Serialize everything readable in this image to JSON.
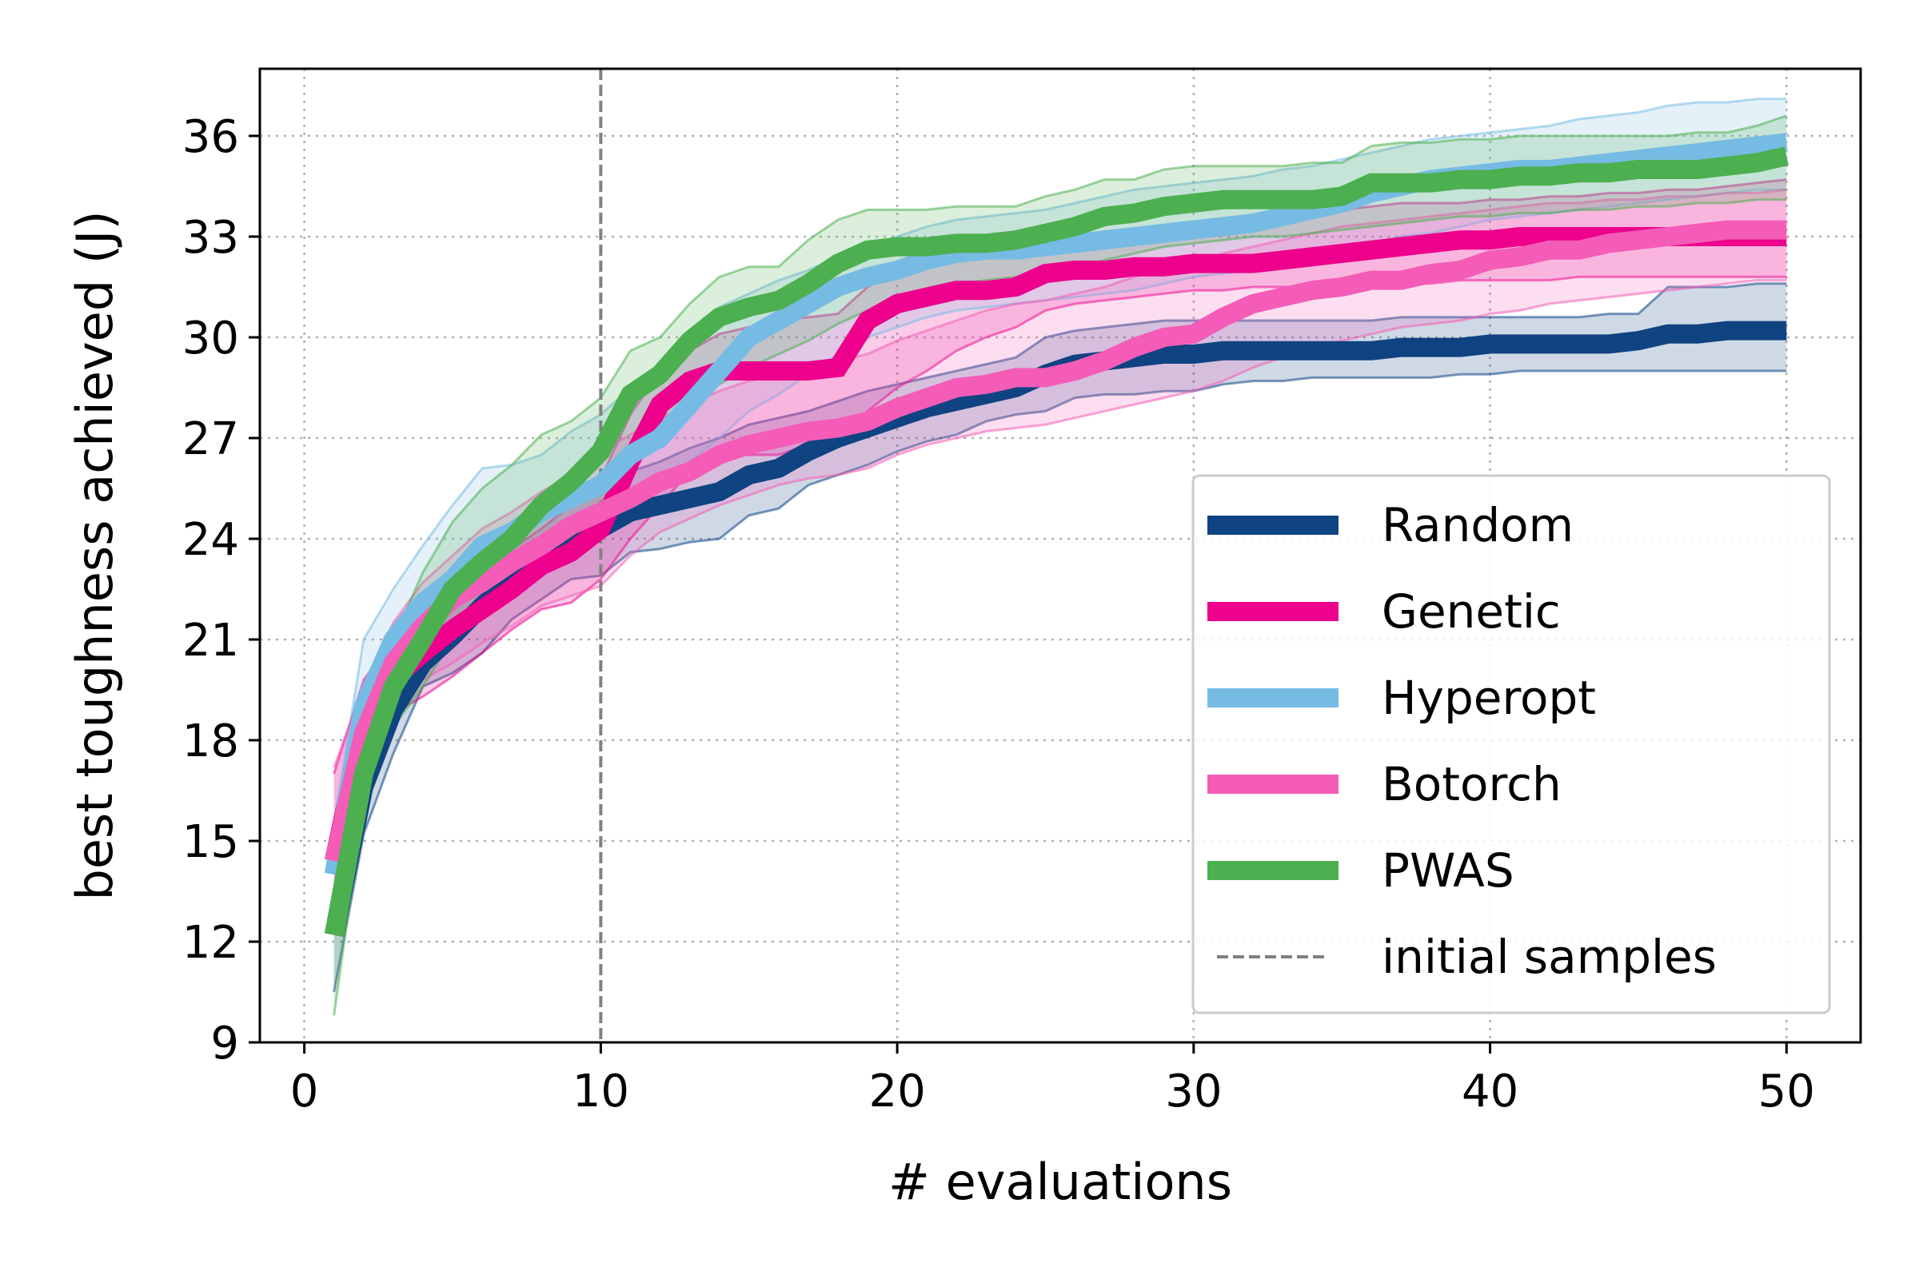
{
  "chart_data": {
    "type": "line",
    "xlabel": "# evaluations",
    "ylabel": "best toughness achieved (J)",
    "xlim": [
      -1.5,
      52.5
    ],
    "ylim": [
      9,
      38
    ],
    "xticks": [
      0,
      10,
      20,
      30,
      40,
      50
    ],
    "yticks": [
      9,
      12,
      15,
      18,
      21,
      24,
      27,
      30,
      33,
      36
    ],
    "grid": true,
    "legend_position": "lower-right",
    "initial_samples_x": 10,
    "initial_samples_label": "initial samples",
    "initial_samples_color": "#808080",
    "x": [
      1,
      2,
      3,
      4,
      5,
      6,
      7,
      8,
      9,
      10,
      11,
      12,
      13,
      14,
      15,
      16,
      17,
      18,
      19,
      20,
      21,
      22,
      23,
      24,
      25,
      26,
      27,
      28,
      29,
      30,
      31,
      32,
      33,
      34,
      35,
      36,
      37,
      38,
      39,
      40,
      41,
      42,
      43,
      44,
      45,
      46,
      47,
      48,
      49,
      50
    ],
    "series": [
      {
        "name": "Random",
        "color": "#0f4381",
        "mean": [
          12.2,
          16.6,
          18.9,
          20.3,
          21.1,
          22.0,
          22.8,
          23.4,
          23.9,
          24.3,
          24.8,
          25.0,
          25.2,
          25.4,
          25.9,
          26.1,
          26.6,
          27.0,
          27.3,
          27.6,
          27.9,
          28.1,
          28.3,
          28.5,
          28.9,
          29.2,
          29.3,
          29.4,
          29.5,
          29.5,
          29.6,
          29.6,
          29.6,
          29.6,
          29.6,
          29.6,
          29.7,
          29.7,
          29.7,
          29.8,
          29.8,
          29.8,
          29.8,
          29.8,
          29.9,
          30.1,
          30.1,
          30.2,
          30.2,
          30.2
        ],
        "lower": [
          10.5,
          15.2,
          17.6,
          19.6,
          20.0,
          20.6,
          21.6,
          22.2,
          22.8,
          22.9,
          23.6,
          23.7,
          23.9,
          24.0,
          24.7,
          24.9,
          25.6,
          25.9,
          26.2,
          26.6,
          26.9,
          27.1,
          27.5,
          27.7,
          27.8,
          28.2,
          28.3,
          28.3,
          28.4,
          28.4,
          28.6,
          28.7,
          28.7,
          28.8,
          28.8,
          28.8,
          28.8,
          28.8,
          28.9,
          28.9,
          29.0,
          29.0,
          29.0,
          29.0,
          29.0,
          29.0,
          29.0,
          29.0,
          29.0,
          29.0
        ],
        "upper": [
          13.0,
          18.2,
          20.6,
          21.6,
          22.5,
          23.2,
          23.9,
          24.6,
          25.0,
          25.4,
          26.0,
          26.3,
          26.7,
          27.0,
          27.4,
          27.6,
          27.8,
          28.1,
          28.4,
          28.6,
          28.8,
          29.0,
          29.2,
          29.4,
          30.0,
          30.2,
          30.3,
          30.4,
          30.5,
          30.5,
          30.5,
          30.5,
          30.5,
          30.5,
          30.5,
          30.5,
          30.6,
          30.6,
          30.6,
          30.6,
          30.6,
          30.6,
          30.6,
          30.7,
          30.7,
          31.5,
          31.5,
          31.5,
          31.6,
          31.6
        ]
      },
      {
        "name": "Genetic",
        "color": "#ec008c",
        "mean": [
          14.4,
          18.5,
          19.8,
          20.6,
          21.3,
          21.9,
          22.5,
          23.2,
          23.6,
          24.3,
          26.3,
          28.0,
          28.7,
          29.0,
          29.0,
          29.0,
          29.0,
          29.1,
          30.5,
          31.0,
          31.2,
          31.4,
          31.4,
          31.5,
          31.9,
          32.0,
          32.0,
          32.1,
          32.1,
          32.2,
          32.2,
          32.2,
          32.3,
          32.4,
          32.5,
          32.6,
          32.7,
          32.8,
          32.9,
          32.9,
          33.0,
          33.0,
          33.0,
          33.0,
          33.0,
          33.0,
          33.0,
          33.0,
          33.0,
          33.0
        ],
        "lower": [
          13.6,
          17.2,
          18.8,
          19.3,
          19.9,
          20.6,
          21.3,
          21.9,
          22.1,
          22.8,
          24.0,
          25.0,
          26.0,
          26.5,
          26.5,
          26.5,
          26.8,
          27.0,
          27.8,
          28.5,
          29.0,
          29.6,
          30.0,
          30.3,
          30.8,
          31.0,
          31.1,
          31.2,
          31.3,
          31.4,
          31.4,
          31.5,
          31.5,
          31.5,
          31.6,
          31.6,
          31.6,
          31.6,
          31.7,
          31.7,
          31.7,
          31.7,
          31.8,
          31.8,
          31.8,
          31.8,
          31.8,
          31.8,
          31.8,
          31.8
        ],
        "upper": [
          17.0,
          19.8,
          21.0,
          21.7,
          22.3,
          23.1,
          23.7,
          24.3,
          25.0,
          25.8,
          27.7,
          29.0,
          29.6,
          30.1,
          30.3,
          30.5,
          30.6,
          30.7,
          31.5,
          32.0,
          32.2,
          32.4,
          32.5,
          32.6,
          32.8,
          32.9,
          33.0,
          33.1,
          33.2,
          33.3,
          33.4,
          33.5,
          33.6,
          33.7,
          33.8,
          33.9,
          34.0,
          34.0,
          34.0,
          34.1,
          34.1,
          34.2,
          34.2,
          34.3,
          34.3,
          34.4,
          34.4,
          34.5,
          34.6,
          34.7
        ]
      },
      {
        "name": "Hyperopt",
        "color": "#76bbe3",
        "mean": [
          14.0,
          19.0,
          21.0,
          22.1,
          22.8,
          23.8,
          24.2,
          24.8,
          25.2,
          25.6,
          26.5,
          27.0,
          28.0,
          29.0,
          30.0,
          30.5,
          31.0,
          31.5,
          31.8,
          32.0,
          32.3,
          32.5,
          32.6,
          32.6,
          32.7,
          32.8,
          32.9,
          33.0,
          33.1,
          33.2,
          33.3,
          33.4,
          33.6,
          33.8,
          34.0,
          34.3,
          34.5,
          34.7,
          34.8,
          34.9,
          35.0,
          35.0,
          35.1,
          35.2,
          35.3,
          35.4,
          35.5,
          35.6,
          35.7,
          35.8
        ],
        "lower": [
          13.4,
          17.5,
          19.5,
          20.6,
          21.0,
          21.8,
          22.5,
          23.0,
          23.6,
          24.1,
          25.0,
          25.5,
          26.3,
          27.0,
          27.8,
          28.3,
          28.9,
          29.5,
          30.0,
          30.3,
          30.6,
          30.8,
          30.9,
          31.0,
          31.1,
          31.2,
          31.3,
          31.4,
          31.6,
          31.8,
          31.9,
          32.0,
          32.2,
          32.4,
          32.6,
          32.8,
          33.0,
          33.1,
          33.3,
          33.5,
          33.6,
          33.7,
          33.8,
          33.9,
          34.0,
          34.1,
          34.2,
          34.3,
          34.4,
          34.4
        ],
        "upper": [
          15.5,
          21.0,
          22.5,
          23.8,
          25.0,
          26.1,
          26.2,
          26.5,
          27.2,
          27.7,
          28.5,
          29.0,
          29.9,
          30.9,
          31.3,
          31.7,
          32.0,
          32.4,
          32.7,
          33.0,
          33.3,
          33.5,
          33.6,
          33.7,
          33.8,
          34.0,
          34.2,
          34.4,
          34.5,
          34.6,
          34.7,
          34.8,
          35.0,
          35.1,
          35.3,
          35.5,
          35.7,
          35.9,
          36.0,
          36.1,
          36.2,
          36.3,
          36.5,
          36.6,
          36.7,
          36.9,
          37.0,
          37.0,
          37.1,
          37.1
        ]
      },
      {
        "name": "Botorch",
        "color": "#f45cb7",
        "mean": [
          14.4,
          18.2,
          20.3,
          21.4,
          22.2,
          22.7,
          23.3,
          23.8,
          24.4,
          24.8,
          25.2,
          25.7,
          26.0,
          26.5,
          26.8,
          27.0,
          27.2,
          27.3,
          27.5,
          27.9,
          28.2,
          28.5,
          28.6,
          28.8,
          28.8,
          29.0,
          29.3,
          29.7,
          30.0,
          30.1,
          30.6,
          31.0,
          31.2,
          31.4,
          31.5,
          31.7,
          31.7,
          31.9,
          32.0,
          32.3,
          32.4,
          32.6,
          32.6,
          32.8,
          32.9,
          33.0,
          33.1,
          33.2,
          33.2,
          33.2
        ],
        "lower": [
          13.5,
          17.3,
          18.7,
          19.8,
          20.3,
          20.9,
          21.4,
          22.0,
          22.3,
          22.6,
          23.5,
          24.2,
          24.6,
          25.0,
          25.3,
          25.6,
          25.8,
          25.9,
          26.1,
          26.5,
          26.8,
          27.0,
          27.2,
          27.3,
          27.4,
          27.6,
          27.8,
          28.0,
          28.2,
          28.4,
          28.7,
          29.1,
          29.4,
          29.7,
          29.9,
          30.1,
          30.3,
          30.4,
          30.5,
          30.7,
          30.8,
          31.0,
          31.1,
          31.2,
          31.3,
          31.4,
          31.5,
          31.6,
          31.7,
          31.7
        ],
        "upper": [
          17.2,
          19.6,
          21.5,
          22.7,
          23.5,
          24.3,
          24.8,
          25.4,
          25.9,
          26.6,
          27.1,
          27.6,
          28.0,
          28.4,
          28.7,
          28.9,
          29.1,
          29.3,
          29.5,
          29.9,
          30.2,
          30.5,
          30.8,
          31.0,
          31.1,
          31.3,
          31.5,
          31.8,
          32.0,
          32.2,
          32.5,
          32.7,
          32.9,
          33.1,
          33.3,
          33.4,
          33.5,
          33.6,
          33.7,
          33.8,
          33.9,
          34.0,
          34.0,
          34.1,
          34.1,
          34.2,
          34.2,
          34.3,
          34.3,
          34.4
        ]
      },
      {
        "name": "PWAS",
        "color": "#4caf50",
        "mean": [
          12.2,
          17.0,
          19.6,
          21.0,
          22.5,
          23.3,
          24.0,
          25.0,
          25.7,
          26.6,
          28.3,
          28.9,
          29.9,
          30.6,
          30.9,
          31.1,
          31.6,
          32.2,
          32.6,
          32.7,
          32.7,
          32.8,
          32.8,
          32.9,
          33.1,
          33.3,
          33.6,
          33.7,
          33.9,
          34.0,
          34.1,
          34.1,
          34.1,
          34.1,
          34.2,
          34.6,
          34.6,
          34.6,
          34.7,
          34.7,
          34.8,
          34.8,
          34.9,
          34.9,
          35.0,
          35.0,
          35.0,
          35.1,
          35.2,
          35.4
        ],
        "lower": [
          9.8,
          16.2,
          18.4,
          19.6,
          21.0,
          21.9,
          22.8,
          23.6,
          24.3,
          24.9,
          26.5,
          27.2,
          28.0,
          28.6,
          29.1,
          29.5,
          29.9,
          30.4,
          30.8,
          31.1,
          31.4,
          31.6,
          31.7,
          31.8,
          31.9,
          32.1,
          32.3,
          32.5,
          32.7,
          32.8,
          32.9,
          33.0,
          33.0,
          33.1,
          33.2,
          33.3,
          33.4,
          33.5,
          33.6,
          33.6,
          33.7,
          33.7,
          33.8,
          33.8,
          33.9,
          33.9,
          34.0,
          34.0,
          34.1,
          34.1
        ],
        "upper": [
          13.0,
          18.0,
          21.0,
          23.0,
          24.5,
          25.5,
          26.2,
          27.1,
          27.5,
          28.2,
          29.6,
          30.0,
          31.0,
          31.8,
          32.1,
          32.1,
          32.9,
          33.5,
          33.8,
          33.8,
          33.8,
          33.9,
          33.9,
          33.9,
          34.2,
          34.4,
          34.7,
          34.7,
          35.0,
          35.1,
          35.1,
          35.1,
          35.1,
          35.2,
          35.2,
          35.7,
          35.8,
          35.8,
          35.9,
          35.9,
          36.0,
          36.0,
          36.0,
          36.0,
          36.0,
          36.0,
          36.1,
          36.1,
          36.3,
          36.6
        ]
      }
    ]
  }
}
